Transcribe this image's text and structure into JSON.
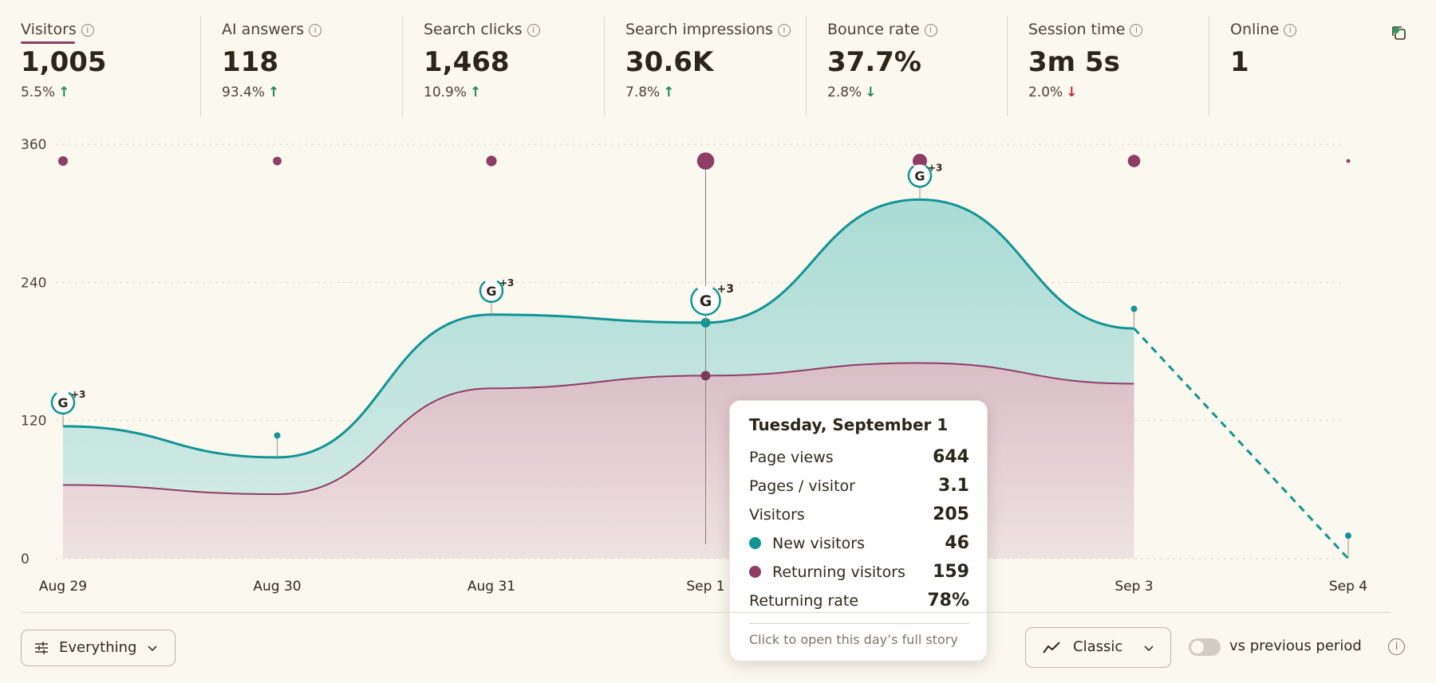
{
  "metrics": [
    {
      "label": "Visitors",
      "value": "1,005",
      "delta": "5.5%",
      "trend": "up",
      "trend_color": "#1a8a5a"
    },
    {
      "label": "AI answers",
      "value": "118",
      "delta": "93.4%",
      "trend": "up",
      "trend_color": "#1a8a5a"
    },
    {
      "label": "Search clicks",
      "value": "1,468",
      "delta": "10.9%",
      "trend": "up",
      "trend_color": "#1a8a5a"
    },
    {
      "label": "Search impressions",
      "value": "30.6K",
      "delta": "7.8%",
      "trend": "up",
      "trend_color": "#1a8a5a"
    },
    {
      "label": "Bounce rate",
      "value": "37.7%",
      "delta": "2.8%",
      "trend": "down",
      "trend_color": "#1a8a5a"
    },
    {
      "label": "Session time",
      "value": "3m 5s",
      "delta": "2.0%",
      "trend": "down",
      "trend_color": "#c0282d"
    },
    {
      "label": "Online",
      "value": "1",
      "delta": "",
      "trend": "",
      "trend_color": ""
    }
  ],
  "colors": {
    "teal": "#129494",
    "teal_fill": "#b8e0db",
    "purple": "#8e3e66",
    "purple_fill": "#e6cdd2",
    "background": "#fbf8ef"
  },
  "chart_data": {
    "type": "area",
    "categories": [
      "Aug 29",
      "Aug 30",
      "Aug 31",
      "Sep 1",
      "Sep 2",
      "Sep 3",
      "Sep 4"
    ],
    "x_tick_labels": [
      "Aug 29",
      "Aug 30",
      "Aug 31",
      "Sep 1",
      "",
      "Sep 3",
      "Sep 4"
    ],
    "y_ticks": [
      "0",
      "120",
      "240",
      "360"
    ],
    "ylim": [
      0,
      360
    ],
    "series": [
      {
        "name": "Visitors",
        "values": [
          115,
          88,
          212,
          205,
          312,
          200,
          0
        ]
      },
      {
        "name": "Returning visitors",
        "values": [
          64,
          56,
          148,
          159,
          170,
          152,
          null
        ]
      }
    ],
    "dashed_segment": {
      "from": "Sep 3",
      "to": "Sep 4"
    },
    "top_dot_sizes": [
      1,
      0.9,
      1.1,
      1.8,
      1.5,
      1.3,
      0.4
    ],
    "annotations": [
      {
        "category": "Aug 29",
        "label": "G",
        "badge": "+3"
      },
      {
        "category": "Aug 31",
        "label": "G",
        "badge": "+3"
      },
      {
        "category": "Sep 1",
        "label": "G",
        "badge": "+3"
      },
      {
        "category": "Sep 2",
        "label": "G",
        "badge": "+3"
      }
    ],
    "stem_markers": [
      {
        "category": "Aug 30",
        "value": 107
      },
      {
        "category": "Sep 3",
        "value": 217
      },
      {
        "category": "Sep 4",
        "value": 20
      }
    ],
    "hover_category": "Sep 1",
    "grid": true
  },
  "tooltip": {
    "title": "Tuesday, September 1",
    "rows": [
      {
        "label": "Page views",
        "value": "644"
      },
      {
        "label": "Pages / visitor",
        "value": "3.1"
      },
      {
        "label": "Visitors",
        "value": "205"
      },
      {
        "label": "New visitors",
        "value": "46",
        "dot": "#129494"
      },
      {
        "label": "Returning visitors",
        "value": "159",
        "dot": "#8e3e66"
      },
      {
        "label": "Returning rate",
        "value": "78%"
      }
    ],
    "footer": "Click to open this day’s full story"
  },
  "controls": {
    "filter_label": "Everything",
    "view_label": "Classic",
    "compare_label": "vs previous period",
    "compare_enabled": false
  }
}
